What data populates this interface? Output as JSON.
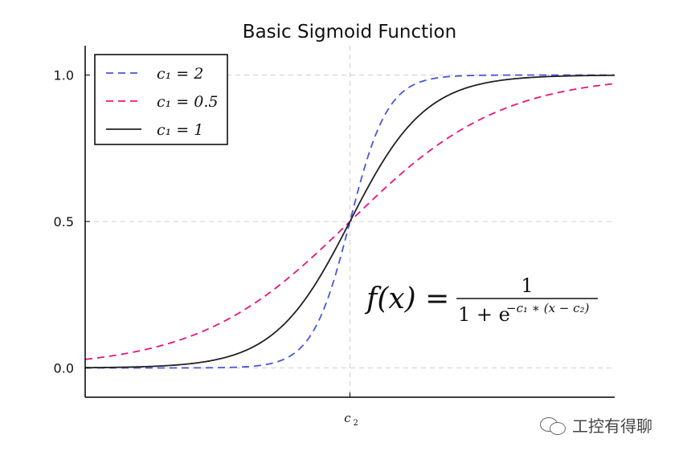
{
  "chart_data": {
    "type": "line",
    "title": "Basic Sigmoid Function",
    "xlabel": "",
    "ylabel": "",
    "xlim": [
      -7,
      7
    ],
    "ylim": [
      -0.1,
      1.1
    ],
    "x_ticks": [
      {
        "value": 0,
        "label": "c",
        "sub": "2"
      }
    ],
    "y_ticks": [
      {
        "value": 0.0,
        "label": "0.0"
      },
      {
        "value": 0.5,
        "label": "0.5"
      },
      {
        "value": 1.0,
        "label": "1.0"
      }
    ],
    "grid": true,
    "legend_position": "top-left",
    "series": [
      {
        "name": "c₁ = 2",
        "c1": 2,
        "style": "dashed",
        "color": "#4b55d6"
      },
      {
        "name": "c₁ = 0.5",
        "c1": 0.5,
        "style": "dashed",
        "color": "#e8157e"
      },
      {
        "name": "c₁ = 1",
        "c1": 1,
        "style": "solid",
        "color": "#222222"
      }
    ],
    "formula": {
      "lhs": "f(x) =",
      "numerator": "1",
      "denominator": "1 + e",
      "exponent": "−c₁ ∗ (x − c₂)"
    }
  },
  "watermark": {
    "text": "工控有得聊"
  }
}
